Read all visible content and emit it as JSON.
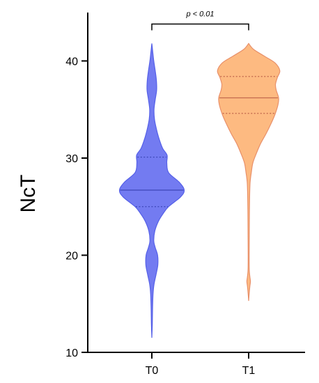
{
  "chart_data": {
    "type": "violin",
    "title": "",
    "xlabel": "",
    "ylabel": "NcT",
    "ylim": [
      10,
      45
    ],
    "yticks": [
      10,
      20,
      30,
      40
    ],
    "categories": [
      "T0",
      "T1"
    ],
    "series": [
      {
        "category": "T0",
        "color": "#6B74F0",
        "stroke": "#5560E8",
        "min": 11.5,
        "max": 41.8,
        "median": 26.7,
        "q1": 25.0,
        "q3": 30.1,
        "density": [
          [
            11.5,
            0.0
          ],
          [
            13.0,
            0.4
          ],
          [
            14.5,
            0.6
          ],
          [
            16.0,
            1.0
          ],
          [
            17.0,
            1.8
          ],
          [
            18.0,
            3.5
          ],
          [
            19.0,
            5.0
          ],
          [
            20.0,
            4.8
          ],
          [
            20.8,
            2.8
          ],
          [
            21.5,
            1.6
          ],
          [
            22.5,
            2.5
          ],
          [
            23.5,
            5.5
          ],
          [
            24.3,
            9.5
          ],
          [
            25.0,
            14.0
          ],
          [
            26.0,
            24.0
          ],
          [
            26.7,
            27.0
          ],
          [
            27.5,
            23.0
          ],
          [
            28.5,
            14.0
          ],
          [
            29.5,
            12.5
          ],
          [
            30.3,
            12.7
          ],
          [
            31.0,
            9.0
          ],
          [
            32.0,
            6.0
          ],
          [
            33.0,
            3.8
          ],
          [
            34.0,
            2.2
          ],
          [
            35.0,
            1.8
          ],
          [
            36.0,
            2.8
          ],
          [
            37.0,
            4.0
          ],
          [
            38.0,
            3.8
          ],
          [
            39.0,
            2.8
          ],
          [
            40.0,
            1.6
          ],
          [
            41.0,
            0.7
          ],
          [
            41.8,
            0.0
          ]
        ]
      },
      {
        "category": "T1",
        "color": "#FDB67A",
        "stroke": "#E8906A",
        "min": 15.3,
        "max": 41.8,
        "median": 36.2,
        "q1": 34.6,
        "q3": 38.4,
        "density": [
          [
            15.3,
            0.0
          ],
          [
            16.0,
            0.4
          ],
          [
            16.8,
            1.0
          ],
          [
            17.3,
            1.5
          ],
          [
            17.8,
            1.0
          ],
          [
            18.5,
            0.5
          ],
          [
            20.0,
            0.4
          ],
          [
            22.0,
            0.5
          ],
          [
            24.0,
            0.6
          ],
          [
            26.0,
            0.8
          ],
          [
            27.5,
            1.2
          ],
          [
            28.5,
            2.2
          ],
          [
            29.5,
            3.5
          ],
          [
            30.5,
            6.5
          ],
          [
            31.5,
            10.0
          ],
          [
            32.5,
            14.5
          ],
          [
            33.5,
            18.5
          ],
          [
            34.5,
            22.0
          ],
          [
            35.5,
            24.5
          ],
          [
            36.2,
            25.0
          ],
          [
            37.0,
            23.0
          ],
          [
            37.6,
            22.4
          ],
          [
            38.3,
            24.0
          ],
          [
            39.0,
            26.0
          ],
          [
            39.8,
            22.0
          ],
          [
            40.5,
            13.0
          ],
          [
            41.2,
            4.0
          ],
          [
            41.8,
            0.0
          ]
        ]
      }
    ],
    "annotations": [
      {
        "text": "p < 0.01",
        "from": "T0",
        "to": "T1",
        "y": 43.8
      }
    ]
  }
}
